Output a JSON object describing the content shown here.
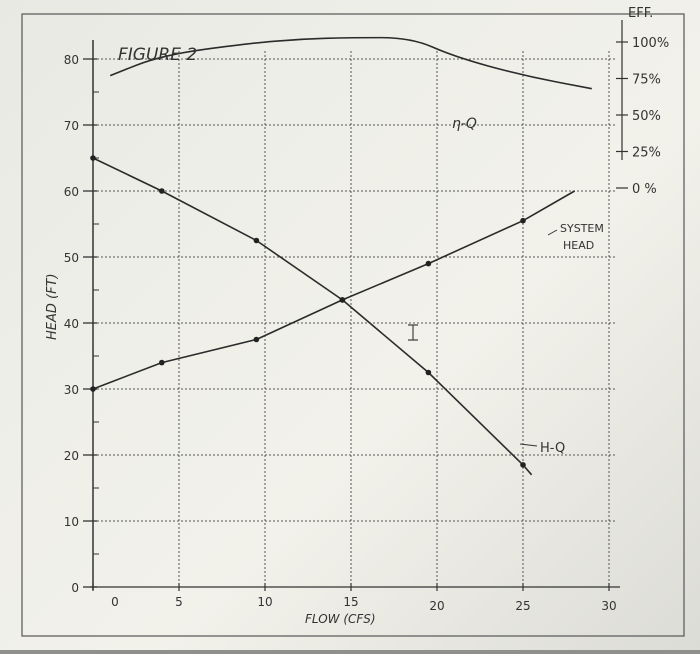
{
  "chart_data": {
    "type": "line",
    "title": "FIGURE 2",
    "xlabel": "FLOW (CFS)",
    "ylabel": "HEAD (FT)",
    "xlim": [
      0,
      30
    ],
    "ylim": [
      0,
      80
    ],
    "x_ticks": [
      "0",
      "5",
      "10",
      "15",
      "20",
      "25",
      "30"
    ],
    "x_tick_values": [
      0,
      5,
      10,
      15,
      20,
      25,
      30
    ],
    "y_ticks": [
      "0",
      "10",
      "20",
      "30",
      "40",
      "50",
      "60",
      "70",
      "80"
    ],
    "y_tick_values": [
      0,
      10,
      20,
      30,
      40,
      50,
      60,
      70,
      80
    ],
    "eff_axis": {
      "label": "EFF.",
      "ticks": [
        "100%",
        "75%",
        "50%",
        "25%",
        "0 %"
      ],
      "tick_values": [
        100,
        75,
        50,
        25,
        0
      ]
    },
    "grid": true,
    "series": [
      {
        "name": "H-Q",
        "axis": "head",
        "x": [
          0,
          4,
          9.5,
          14.5,
          19.5,
          25,
          25.5
        ],
        "y": [
          65,
          60,
          52.5,
          43.5,
          32.5,
          18.5,
          17
        ],
        "markers": [
          0,
          1,
          2,
          3,
          4,
          5
        ]
      },
      {
        "name": "SYSTEM HEAD",
        "axis": "head",
        "x": [
          0,
          4,
          9.5,
          14.5,
          19.5,
          25,
          28
        ],
        "y": [
          30,
          34,
          37.5,
          43.5,
          49,
          55.5,
          60
        ],
        "markers": [
          0,
          1,
          2,
          3,
          4,
          5
        ]
      },
      {
        "name": "η-Q",
        "axis": "eff",
        "x": [
          1,
          4,
          9,
          12,
          15,
          18.5,
          21,
          25,
          29
        ],
        "y": [
          77,
          91,
          99,
          102,
          103,
          103,
          90,
          77,
          68
        ],
        "markers": []
      }
    ],
    "annotations": [
      {
        "text": "η-Q"
      },
      {
        "text": "SYSTEM"
      },
      {
        "text": "HEAD"
      },
      {
        "text": "H-Q"
      }
    ]
  }
}
